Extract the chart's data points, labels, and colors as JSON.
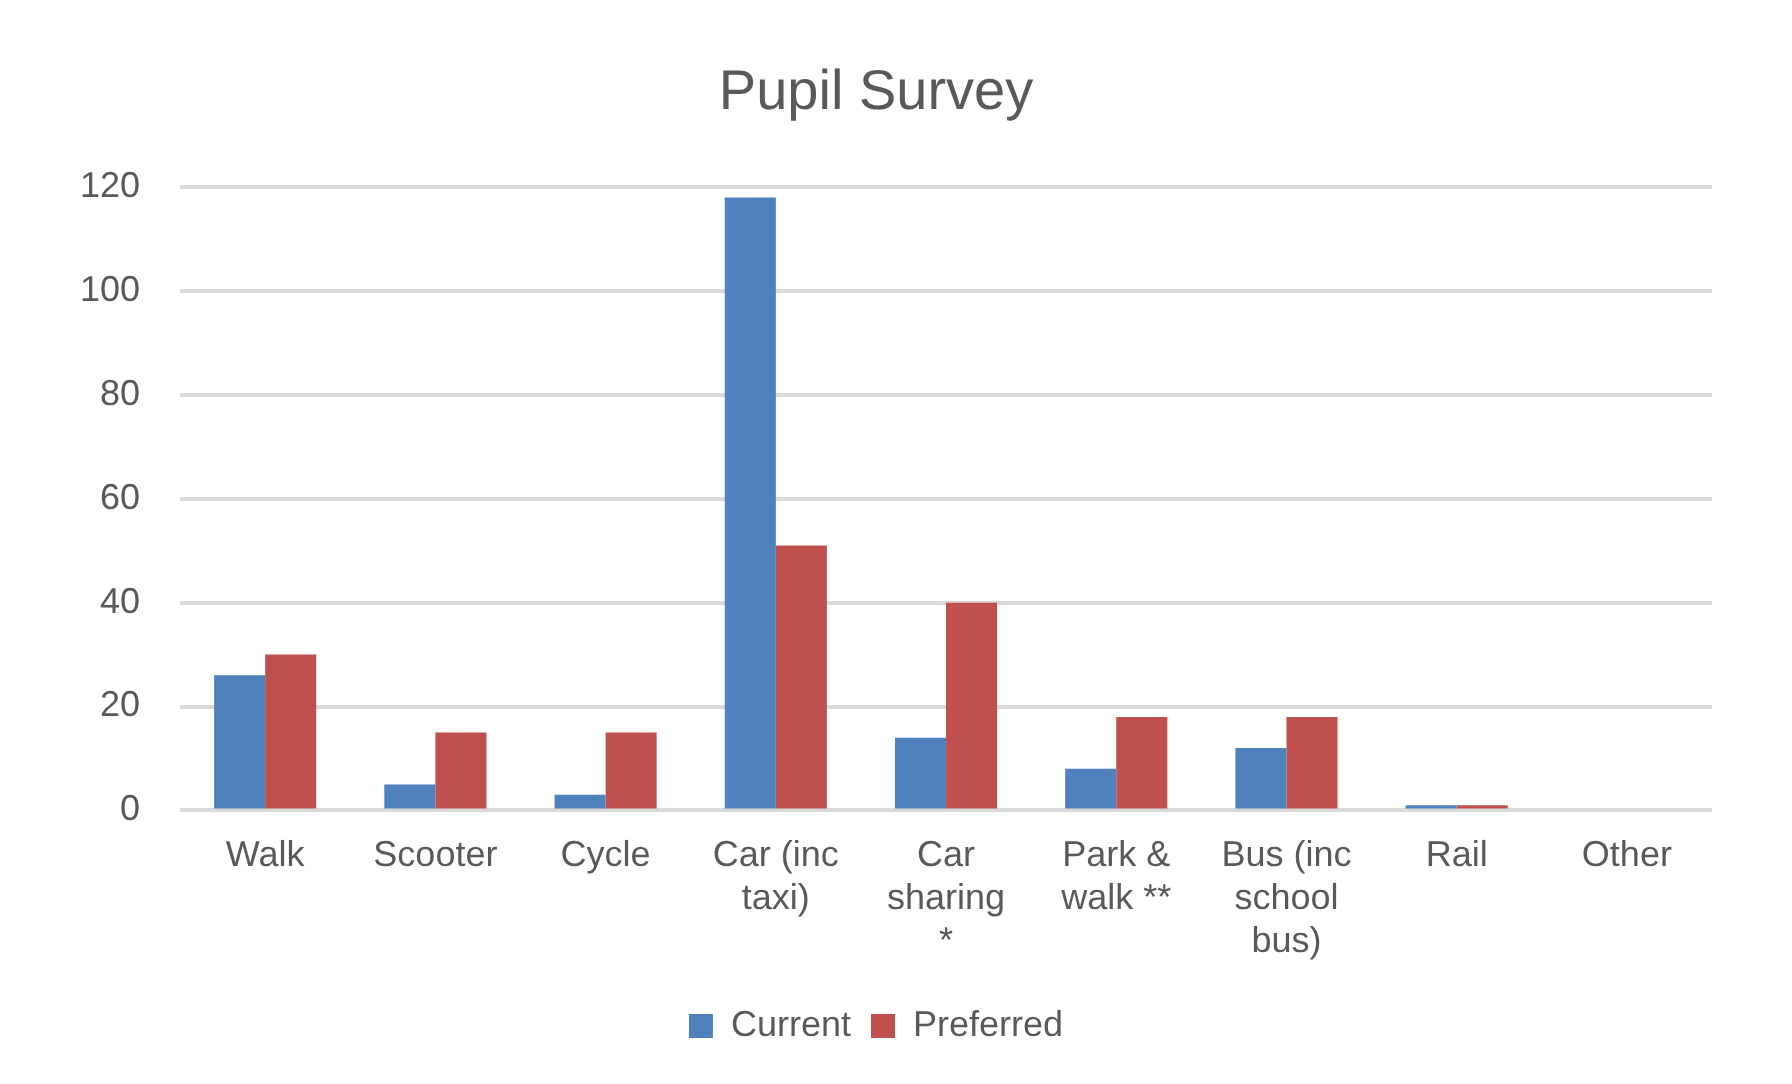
{
  "chart_data": {
    "type": "bar",
    "title": "Pupil Survey",
    "categories": [
      "Walk",
      "Scooter",
      "Cycle",
      "Car (inc taxi)",
      "Car sharing *",
      "Park & walk **",
      "Bus (inc school bus)",
      "Rail",
      "Other"
    ],
    "series": [
      {
        "name": "Current",
        "color": "#4f81bd",
        "values": [
          26,
          5,
          3,
          118,
          14,
          8,
          12,
          1,
          0
        ]
      },
      {
        "name": "Preferred",
        "color": "#c0504d",
        "values": [
          30,
          15,
          15,
          51,
          40,
          18,
          18,
          1,
          0
        ]
      }
    ],
    "ylim": [
      0,
      120
    ],
    "yticks": [
      0,
      20,
      40,
      60,
      80,
      100,
      120
    ],
    "grid": "y",
    "legend": "bottom"
  }
}
